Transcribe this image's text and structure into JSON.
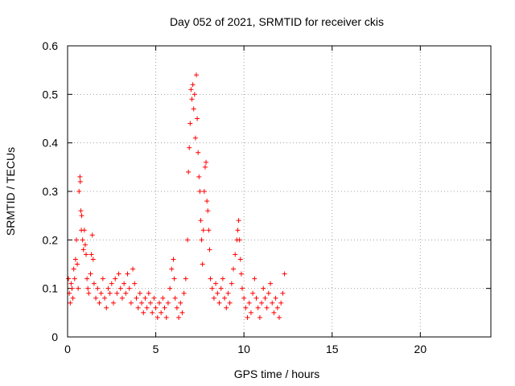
{
  "chart_data": {
    "type": "scatter",
    "title": "Day 052 of 2021, SRMTID for receiver ckis",
    "xlabel": "GPS time / hours",
    "ylabel": "SRMTID / TECUs",
    "xlim": [
      0,
      24
    ],
    "ylim": [
      0,
      0.6
    ],
    "grid": true,
    "marker": "+",
    "x_ticks": [
      0,
      5,
      10,
      15,
      20
    ],
    "x_tick_labels": [
      "0",
      "5",
      "10",
      "15",
      "20"
    ],
    "y_ticks": [
      0,
      0.1,
      0.2,
      0.3,
      0.4,
      0.5,
      0.6
    ],
    "y_tick_labels": [
      "0",
      "0.1",
      "0.2",
      "0.3",
      "0.4",
      "0.5",
      "0.6"
    ],
    "series": [
      {
        "name": "SRMTID",
        "color": "#ff0000",
        "points": [
          [
            0.05,
            0.12
          ],
          [
            0.1,
            0.09
          ],
          [
            0.15,
            0.07
          ],
          [
            0.2,
            0.11
          ],
          [
            0.25,
            0.1
          ],
          [
            0.3,
            0.08
          ],
          [
            0.35,
            0.14
          ],
          [
            0.4,
            0.12
          ],
          [
            0.45,
            0.16
          ],
          [
            0.5,
            0.2
          ],
          [
            0.55,
            0.15
          ],
          [
            0.6,
            0.1
          ],
          [
            0.65,
            0.3
          ],
          [
            0.7,
            0.33
          ],
          [
            0.72,
            0.32
          ],
          [
            0.75,
            0.26
          ],
          [
            0.78,
            0.22
          ],
          [
            0.8,
            0.25
          ],
          [
            0.85,
            0.2
          ],
          [
            0.9,
            0.18
          ],
          [
            0.95,
            0.22
          ],
          [
            1.0,
            0.19
          ],
          [
            1.05,
            0.17
          ],
          [
            1.1,
            0.12
          ],
          [
            1.15,
            0.1
          ],
          [
            1.2,
            0.09
          ],
          [
            1.3,
            0.13
          ],
          [
            1.35,
            0.17
          ],
          [
            1.4,
            0.21
          ],
          [
            1.45,
            0.16
          ],
          [
            1.5,
            0.11
          ],
          [
            1.6,
            0.08
          ],
          [
            1.7,
            0.1
          ],
          [
            1.8,
            0.07
          ],
          [
            1.9,
            0.09
          ],
          [
            2.0,
            0.12
          ],
          [
            2.1,
            0.08
          ],
          [
            2.2,
            0.06
          ],
          [
            2.3,
            0.1
          ],
          [
            2.4,
            0.09
          ],
          [
            2.5,
            0.11
          ],
          [
            2.6,
            0.07
          ],
          [
            2.7,
            0.12
          ],
          [
            2.8,
            0.09
          ],
          [
            2.9,
            0.13
          ],
          [
            3.0,
            0.1
          ],
          [
            3.1,
            0.08
          ],
          [
            3.2,
            0.11
          ],
          [
            3.3,
            0.09
          ],
          [
            3.4,
            0.13
          ],
          [
            3.5,
            0.1
          ],
          [
            3.6,
            0.07
          ],
          [
            3.7,
            0.14
          ],
          [
            3.8,
            0.11
          ],
          [
            3.9,
            0.08
          ],
          [
            4.0,
            0.06
          ],
          [
            4.1,
            0.09
          ],
          [
            4.2,
            0.07
          ],
          [
            4.3,
            0.05
          ],
          [
            4.4,
            0.08
          ],
          [
            4.5,
            0.06
          ],
          [
            4.6,
            0.09
          ],
          [
            4.7,
            0.07
          ],
          [
            4.8,
            0.05
          ],
          [
            4.9,
            0.08
          ],
          [
            5.0,
            0.06
          ],
          [
            5.1,
            0.04
          ],
          [
            5.2,
            0.07
          ],
          [
            5.3,
            0.05
          ],
          [
            5.4,
            0.08
          ],
          [
            5.5,
            0.06
          ],
          [
            5.6,
            0.04
          ],
          [
            5.7,
            0.07
          ],
          [
            5.8,
            0.1
          ],
          [
            5.9,
            0.14
          ],
          [
            6.0,
            0.16
          ],
          [
            6.05,
            0.12
          ],
          [
            6.1,
            0.08
          ],
          [
            6.2,
            0.06
          ],
          [
            6.3,
            0.04
          ],
          [
            6.4,
            0.07
          ],
          [
            6.5,
            0.05
          ],
          [
            6.6,
            0.09
          ],
          [
            6.7,
            0.12
          ],
          [
            6.8,
            0.2
          ],
          [
            6.85,
            0.34
          ],
          [
            6.9,
            0.39
          ],
          [
            6.95,
            0.44
          ],
          [
            7.0,
            0.51
          ],
          [
            7.05,
            0.49
          ],
          [
            7.1,
            0.52
          ],
          [
            7.15,
            0.47
          ],
          [
            7.2,
            0.5
          ],
          [
            7.25,
            0.41
          ],
          [
            7.3,
            0.54
          ],
          [
            7.35,
            0.45
          ],
          [
            7.4,
            0.38
          ],
          [
            7.45,
            0.33
          ],
          [
            7.5,
            0.3
          ],
          [
            7.55,
            0.24
          ],
          [
            7.6,
            0.2
          ],
          [
            7.65,
            0.15
          ],
          [
            7.7,
            0.22
          ],
          [
            7.75,
            0.3
          ],
          [
            7.8,
            0.35
          ],
          [
            7.85,
            0.36
          ],
          [
            7.9,
            0.28
          ],
          [
            7.95,
            0.26
          ],
          [
            8.0,
            0.22
          ],
          [
            8.05,
            0.18
          ],
          [
            8.1,
            0.12
          ],
          [
            8.2,
            0.1
          ],
          [
            8.3,
            0.08
          ],
          [
            8.4,
            0.11
          ],
          [
            8.5,
            0.09
          ],
          [
            8.6,
            0.07
          ],
          [
            8.7,
            0.1
          ],
          [
            8.8,
            0.12
          ],
          [
            8.9,
            0.08
          ],
          [
            9.0,
            0.06
          ],
          [
            9.1,
            0.09
          ],
          [
            9.2,
            0.07
          ],
          [
            9.3,
            0.11
          ],
          [
            9.4,
            0.14
          ],
          [
            9.5,
            0.17
          ],
          [
            9.6,
            0.2
          ],
          [
            9.65,
            0.22
          ],
          [
            9.7,
            0.24
          ],
          [
            9.75,
            0.2
          ],
          [
            9.8,
            0.16
          ],
          [
            9.85,
            0.13
          ],
          [
            9.9,
            0.1
          ],
          [
            10.0,
            0.08
          ],
          [
            10.1,
            0.06
          ],
          [
            10.2,
            0.04
          ],
          [
            10.3,
            0.07
          ],
          [
            10.4,
            0.05
          ],
          [
            10.5,
            0.09
          ],
          [
            10.6,
            0.12
          ],
          [
            10.7,
            0.08
          ],
          [
            10.8,
            0.06
          ],
          [
            10.9,
            0.04
          ],
          [
            11.0,
            0.07
          ],
          [
            11.1,
            0.1
          ],
          [
            11.2,
            0.08
          ],
          [
            11.3,
            0.06
          ],
          [
            11.4,
            0.09
          ],
          [
            11.5,
            0.11
          ],
          [
            11.6,
            0.07
          ],
          [
            11.7,
            0.05
          ],
          [
            11.8,
            0.08
          ],
          [
            11.9,
            0.06
          ],
          [
            12.0,
            0.04
          ],
          [
            12.1,
            0.07
          ],
          [
            12.2,
            0.09
          ],
          [
            12.3,
            0.13
          ]
        ]
      }
    ]
  }
}
